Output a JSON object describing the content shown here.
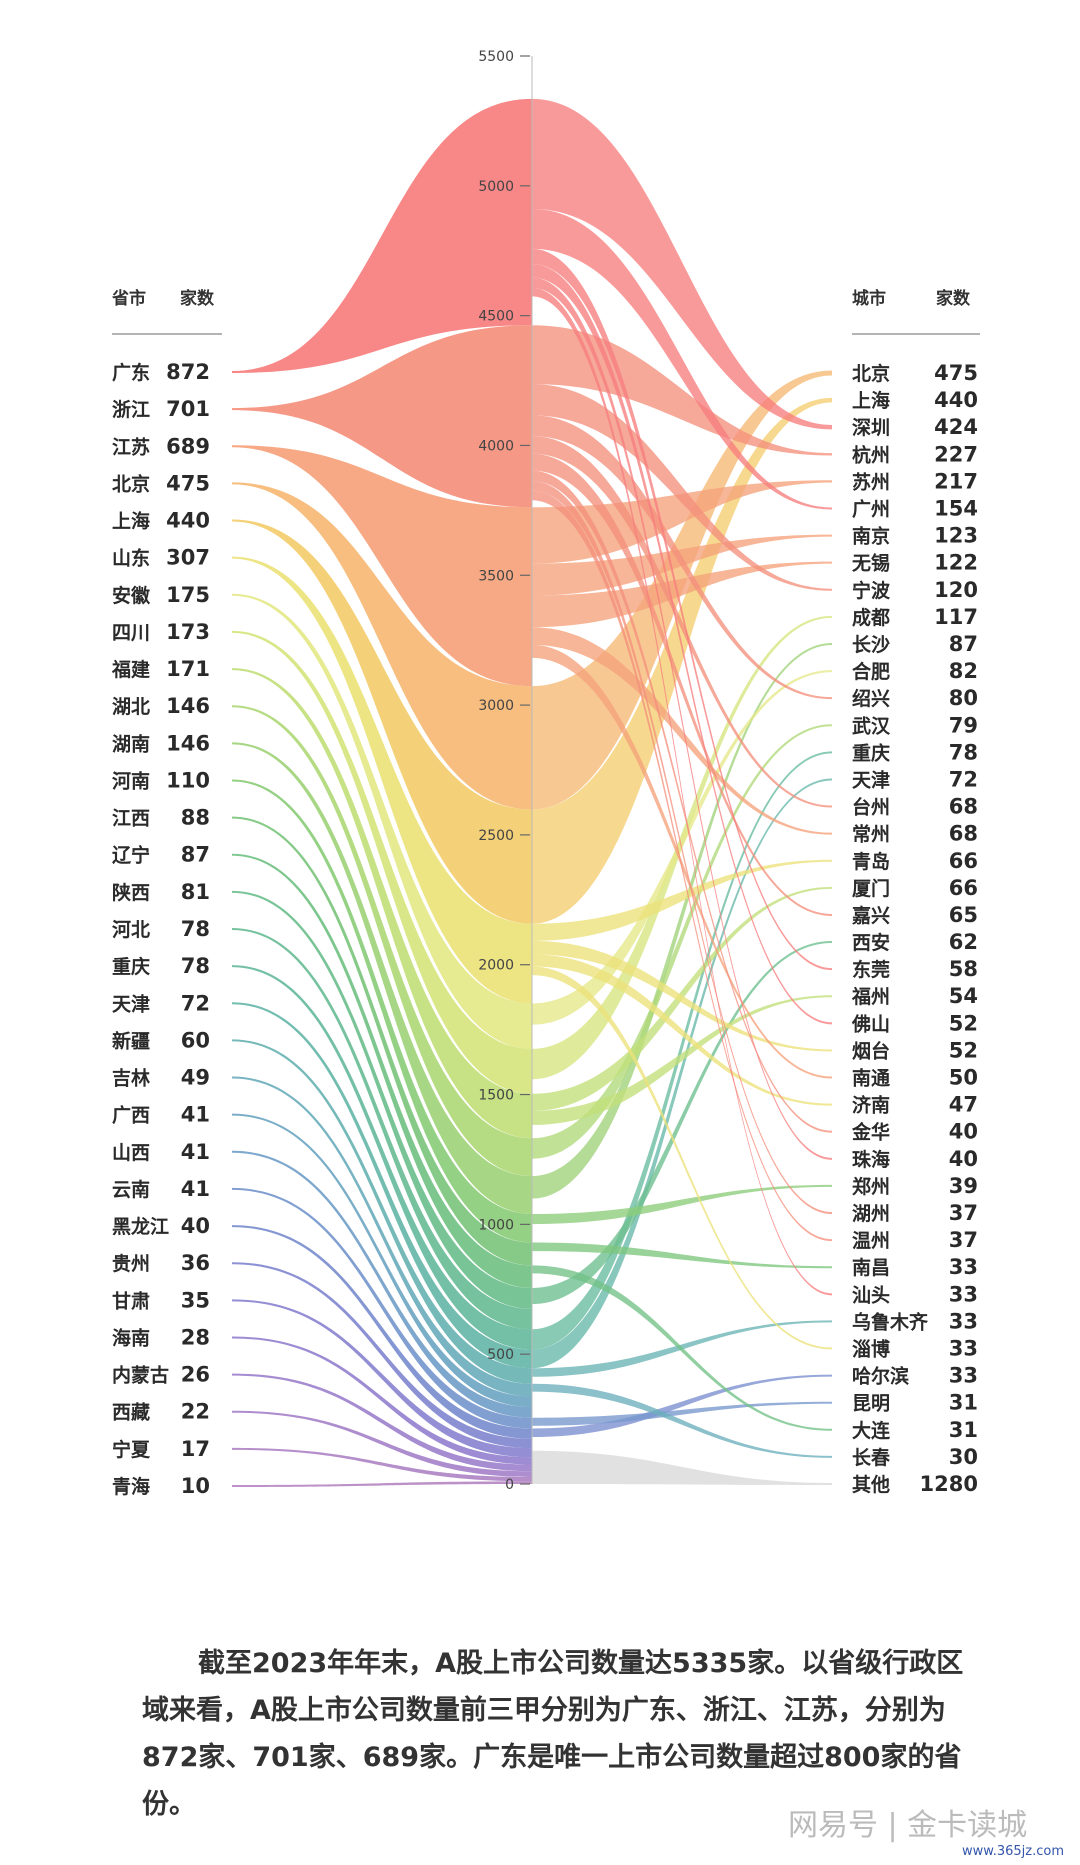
{
  "chart_data": {
    "type": "sankey",
    "left_header": {
      "name": "省市",
      "count": "家数"
    },
    "right_header": {
      "name": "城市",
      "count": "家数"
    },
    "axis": {
      "min": 0,
      "max": 5500,
      "ticks": [
        "0",
        "500",
        "1000",
        "1500",
        "2000",
        "2500",
        "3000",
        "3500",
        "4000",
        "4500",
        "5000",
        "5500"
      ]
    },
    "provinces": [
      {
        "name": "广东",
        "value": 872
      },
      {
        "name": "浙江",
        "value": 701
      },
      {
        "name": "江苏",
        "value": 689
      },
      {
        "name": "北京",
        "value": 475
      },
      {
        "name": "上海",
        "value": 440
      },
      {
        "name": "山东",
        "value": 307
      },
      {
        "name": "安徽",
        "value": 175
      },
      {
        "name": "四川",
        "value": 173
      },
      {
        "name": "福建",
        "value": 171
      },
      {
        "name": "湖北",
        "value": 146
      },
      {
        "name": "湖南",
        "value": 146
      },
      {
        "name": "河南",
        "value": 110
      },
      {
        "name": "江西",
        "value": 88
      },
      {
        "name": "辽宁",
        "value": 87
      },
      {
        "name": "陕西",
        "value": 81
      },
      {
        "name": "河北",
        "value": 78
      },
      {
        "name": "重庆",
        "value": 78
      },
      {
        "name": "天津",
        "value": 72
      },
      {
        "name": "新疆",
        "value": 60
      },
      {
        "name": "吉林",
        "value": 49
      },
      {
        "name": "广西",
        "value": 41
      },
      {
        "name": "山西",
        "value": 41
      },
      {
        "name": "云南",
        "value": 41
      },
      {
        "name": "黑龙江",
        "value": 40
      },
      {
        "name": "贵州",
        "value": 36
      },
      {
        "name": "甘肃",
        "value": 35
      },
      {
        "name": "海南",
        "value": 28
      },
      {
        "name": "内蒙古",
        "value": 26
      },
      {
        "name": "西藏",
        "value": 22
      },
      {
        "name": "宁夏",
        "value": 17
      },
      {
        "name": "青海",
        "value": 10
      }
    ],
    "cities": [
      {
        "name": "北京",
        "value": 475,
        "province": "北京"
      },
      {
        "name": "上海",
        "value": 440,
        "province": "上海"
      },
      {
        "name": "深圳",
        "value": 424,
        "province": "广东"
      },
      {
        "name": "杭州",
        "value": 227,
        "province": "浙江"
      },
      {
        "name": "苏州",
        "value": 217,
        "province": "江苏"
      },
      {
        "name": "广州",
        "value": 154,
        "province": "广东"
      },
      {
        "name": "南京",
        "value": 123,
        "province": "江苏"
      },
      {
        "name": "无锡",
        "value": 122,
        "province": "江苏"
      },
      {
        "name": "宁波",
        "value": 120,
        "province": "浙江"
      },
      {
        "name": "成都",
        "value": 117,
        "province": "四川"
      },
      {
        "name": "长沙",
        "value": 87,
        "province": "湖南"
      },
      {
        "name": "合肥",
        "value": 82,
        "province": "安徽"
      },
      {
        "name": "绍兴",
        "value": 80,
        "province": "浙江"
      },
      {
        "name": "武汉",
        "value": 79,
        "province": "湖北"
      },
      {
        "name": "重庆",
        "value": 78,
        "province": "重庆"
      },
      {
        "name": "天津",
        "value": 72,
        "province": "天津"
      },
      {
        "name": "台州",
        "value": 68,
        "province": "浙江"
      },
      {
        "name": "常州",
        "value": 68,
        "province": "江苏"
      },
      {
        "name": "青岛",
        "value": 66,
        "province": "山东"
      },
      {
        "name": "厦门",
        "value": 66,
        "province": "福建"
      },
      {
        "name": "嘉兴",
        "value": 65,
        "province": "浙江"
      },
      {
        "name": "西安",
        "value": 62,
        "province": "陕西"
      },
      {
        "name": "东莞",
        "value": 58,
        "province": "广东"
      },
      {
        "name": "福州",
        "value": 54,
        "province": "福建"
      },
      {
        "name": "佛山",
        "value": 52,
        "province": "广东"
      },
      {
        "name": "烟台",
        "value": 52,
        "province": "山东"
      },
      {
        "name": "南通",
        "value": 50,
        "province": "江苏"
      },
      {
        "name": "济南",
        "value": 47,
        "province": "山东"
      },
      {
        "name": "金华",
        "value": 40,
        "province": "浙江"
      },
      {
        "name": "珠海",
        "value": 40,
        "province": "广东"
      },
      {
        "name": "郑州",
        "value": 39,
        "province": "河南"
      },
      {
        "name": "湖州",
        "value": 37,
        "province": "浙江"
      },
      {
        "name": "温州",
        "value": 37,
        "province": "浙江"
      },
      {
        "name": "南昌",
        "value": 33,
        "province": "江西"
      },
      {
        "name": "汕头",
        "value": 33,
        "province": "广东"
      },
      {
        "name": "乌鲁木齐",
        "value": 33,
        "province": "新疆"
      },
      {
        "name": "淄博",
        "value": 33,
        "province": "山东"
      },
      {
        "name": "哈尔滨",
        "value": 33,
        "province": "黑龙江"
      },
      {
        "name": "昆明",
        "value": 31,
        "province": "云南"
      },
      {
        "name": "大连",
        "value": 31,
        "province": "辽宁"
      },
      {
        "name": "长春",
        "value": 30,
        "province": "吉林"
      },
      {
        "name": "其他",
        "value": 1280,
        "province": ""
      }
    ],
    "colors": {
      "广东": "#f77d7d",
      "浙江": "#f48f7c",
      "江苏": "#f5a27a",
      "北京": "#f6b875",
      "上海": "#f3cd6e",
      "山东": "#ece27a",
      "安徽": "#e4e888",
      "四川": "#d6e57e",
      "福建": "#c2df7a",
      "湖北": "#b0d978",
      "湖南": "#9fd27a",
      "河南": "#8ccd7a",
      "江西": "#7dc67e",
      "辽宁": "#72c286",
      "陕西": "#6cbf8e",
      "河北": "#6abd96",
      "重庆": "#68bb9f",
      "天津": "#67b7a9",
      "新疆": "#69b3b3",
      "吉林": "#6caebc",
      "广西": "#6fa7c3",
      "山西": "#729fc9",
      "云南": "#7697cd",
      "黑龙江": "#7b8ecf",
      "贵州": "#8288d0",
      "甘肃": "#8b84d0",
      "海南": "#9582cf",
      "内蒙古": "#9e82cd",
      "西藏": "#a783ca",
      "宁夏": "#af85c6",
      "青海": "#b688c2",
      "其他": "#dcdcdc"
    }
  },
  "caption": "截至2023年年末，A股上市公司数量达5335家。以省级行政区域来看，A股上市公司数量前三甲分别为广东、浙江、江苏，分别为872家、701家、689家。广东是唯一上市公司数量超过800家的省份。",
  "watermark": "网易号 | 金卡读城",
  "watermark_url": "www.365jz.com"
}
